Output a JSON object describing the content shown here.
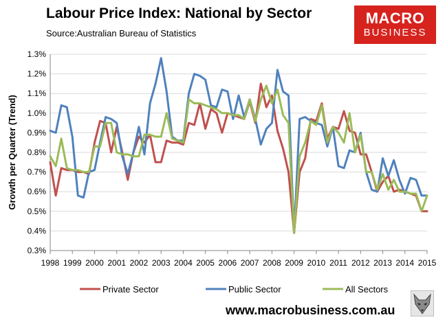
{
  "header": {
    "title": "Labour Price Index: National by Sector",
    "source": "Source:Australian Bureau of Statistics"
  },
  "logo": {
    "line1": "MACRO",
    "line2": "BUSINESS"
  },
  "footer": {
    "url": "www.macrobusiness.com.au"
  },
  "colors": {
    "private": "#c0504d",
    "public": "#4f81bd",
    "all": "#9bbb59",
    "brand": "#d7231e"
  },
  "chart_data": {
    "type": "line",
    "title": "Labour Price Index: National by Sector",
    "ylabel": "Growth per Quarter (Trend)",
    "xlabel": "",
    "ylim": [
      0.3,
      1.3
    ],
    "xlim": [
      1998,
      2015
    ],
    "yticks": [
      "0.3%",
      "0.4%",
      "0.5%",
      "0.6%",
      "0.7%",
      "0.8%",
      "0.9%",
      "1.0%",
      "1.1%",
      "1.2%",
      "1.3%"
    ],
    "xticks": [
      "1998",
      "1999",
      "2000",
      "2001",
      "2002",
      "2003",
      "2004",
      "2005",
      "2006",
      "2007",
      "2008",
      "2009",
      "2010",
      "2011",
      "2012",
      "2013",
      "2014",
      "2015"
    ],
    "grid": "horizontal",
    "legend": "bottom",
    "series": [
      {
        "name": "Private Sector",
        "color": "#c0504d",
        "x": [
          1998.0,
          1998.25,
          1998.5,
          1998.75,
          1999.0,
          1999.25,
          1999.5,
          1999.75,
          2000.0,
          2000.25,
          2000.5,
          2000.75,
          2001.0,
          2001.25,
          2001.5,
          2001.75,
          2002.0,
          2002.25,
          2002.5,
          2002.75,
          2003.0,
          2003.25,
          2003.5,
          2003.75,
          2004.0,
          2004.25,
          2004.5,
          2004.75,
          2005.0,
          2005.25,
          2005.5,
          2005.75,
          2006.0,
          2006.25,
          2006.5,
          2006.75,
          2007.0,
          2007.25,
          2007.5,
          2007.75,
          2008.0,
          2008.25,
          2008.5,
          2008.75,
          2009.0,
          2009.25,
          2009.5,
          2009.75,
          2010.0,
          2010.25,
          2010.5,
          2010.75,
          2011.0,
          2011.25,
          2011.5,
          2011.75,
          2012.0,
          2012.25,
          2012.5,
          2012.75,
          2013.0,
          2013.25,
          2013.5,
          2013.75,
          2014.0,
          2014.25,
          2014.5,
          2014.75,
          2015.0
        ],
        "y": [
          0.75,
          0.58,
          0.72,
          0.71,
          0.71,
          0.7,
          0.7,
          0.69,
          0.85,
          0.96,
          0.95,
          0.8,
          0.93,
          0.8,
          0.66,
          0.8,
          0.88,
          0.85,
          0.89,
          0.75,
          0.75,
          0.86,
          0.85,
          0.85,
          0.84,
          0.95,
          0.94,
          1.05,
          0.92,
          1.02,
          1.0,
          0.9,
          1.0,
          0.99,
          0.98,
          0.97,
          1.06,
          0.95,
          1.15,
          1.03,
          1.09,
          0.91,
          0.82,
          0.7,
          0.39,
          0.7,
          0.77,
          0.97,
          0.96,
          1.05,
          0.87,
          0.93,
          0.92,
          1.01,
          0.91,
          0.9,
          0.79,
          0.79,
          0.7,
          0.6,
          0.65,
          0.68,
          0.6,
          0.61,
          0.6,
          0.59,
          0.58,
          0.5,
          0.5
        ]
      },
      {
        "name": "Public Sector",
        "color": "#4f81bd",
        "x": [
          1998.0,
          1998.25,
          1998.5,
          1998.75,
          1999.0,
          1999.25,
          1999.5,
          1999.75,
          2000.0,
          2000.25,
          2000.5,
          2000.75,
          2001.0,
          2001.25,
          2001.5,
          2001.75,
          2002.0,
          2002.25,
          2002.5,
          2002.75,
          2003.0,
          2003.25,
          2003.5,
          2003.75,
          2004.0,
          2004.25,
          2004.5,
          2004.75,
          2005.0,
          2005.25,
          2005.5,
          2005.75,
          2006.0,
          2006.25,
          2006.5,
          2006.75,
          2007.0,
          2007.25,
          2007.5,
          2007.75,
          2008.0,
          2008.25,
          2008.5,
          2008.75,
          2009.0,
          2009.25,
          2009.5,
          2009.75,
          2010.0,
          2010.25,
          2010.5,
          2010.75,
          2011.0,
          2011.25,
          2011.5,
          2011.75,
          2012.0,
          2012.25,
          2012.5,
          2012.75,
          2013.0,
          2013.25,
          2013.5,
          2013.75,
          2014.0,
          2014.25,
          2014.5,
          2014.75,
          2015.0
        ],
        "y": [
          0.91,
          0.9,
          1.04,
          1.03,
          0.88,
          0.58,
          0.57,
          0.7,
          0.71,
          0.85,
          0.98,
          0.97,
          0.95,
          0.78,
          0.69,
          0.8,
          0.93,
          0.79,
          1.05,
          1.15,
          1.28,
          1.11,
          0.88,
          0.86,
          0.86,
          1.1,
          1.2,
          1.19,
          1.17,
          1.04,
          1.03,
          1.12,
          1.11,
          0.97,
          1.09,
          0.98,
          1.07,
          0.97,
          0.84,
          0.92,
          0.95,
          1.22,
          1.11,
          1.09,
          0.39,
          0.97,
          0.98,
          0.96,
          0.95,
          0.94,
          0.83,
          0.93,
          0.73,
          0.72,
          0.81,
          0.8,
          0.9,
          0.7,
          0.61,
          0.6,
          0.77,
          0.68,
          0.76,
          0.66,
          0.59,
          0.67,
          0.66,
          0.58,
          0.58
        ]
      },
      {
        "name": "All Sectors",
        "color": "#9bbb59",
        "x": [
          1998.0,
          1998.25,
          1998.5,
          1998.75,
          1999.0,
          1999.25,
          1999.5,
          1999.75,
          2000.0,
          2000.25,
          2000.5,
          2000.75,
          2001.0,
          2001.25,
          2001.5,
          2001.75,
          2002.0,
          2002.25,
          2002.5,
          2002.75,
          2003.0,
          2003.25,
          2003.5,
          2003.75,
          2004.0,
          2004.25,
          2004.5,
          2004.75,
          2005.0,
          2005.25,
          2005.5,
          2005.75,
          2006.0,
          2006.25,
          2006.5,
          2006.75,
          2007.0,
          2007.25,
          2007.5,
          2007.75,
          2008.0,
          2008.25,
          2008.5,
          2008.75,
          2009.0,
          2009.25,
          2009.5,
          2009.75,
          2010.0,
          2010.25,
          2010.5,
          2010.75,
          2011.0,
          2011.25,
          2011.5,
          2011.75,
          2012.0,
          2012.25,
          2012.5,
          2012.75,
          2013.0,
          2013.25,
          2013.5,
          2013.75,
          2014.0,
          2014.25,
          2014.5,
          2014.75,
          2015.0
        ],
        "y": [
          0.78,
          0.73,
          0.87,
          0.72,
          0.71,
          0.71,
          0.7,
          0.7,
          0.83,
          0.83,
          0.95,
          0.95,
          0.8,
          0.79,
          0.79,
          0.78,
          0.78,
          0.89,
          0.89,
          0.88,
          0.88,
          1.0,
          0.87,
          0.86,
          0.85,
          1.07,
          1.05,
          1.05,
          1.04,
          1.03,
          1.02,
          1.0,
          1.0,
          0.99,
          0.99,
          0.97,
          1.07,
          0.96,
          1.07,
          1.14,
          1.05,
          1.12,
          0.99,
          0.95,
          0.39,
          0.78,
          0.85,
          0.96,
          0.94,
          1.04,
          0.85,
          0.93,
          0.9,
          0.85,
          1.0,
          0.8,
          0.89,
          0.7,
          0.7,
          0.61,
          0.69,
          0.61,
          0.66,
          0.6,
          0.6,
          0.59,
          0.59,
          0.5,
          0.58
        ]
      }
    ]
  }
}
